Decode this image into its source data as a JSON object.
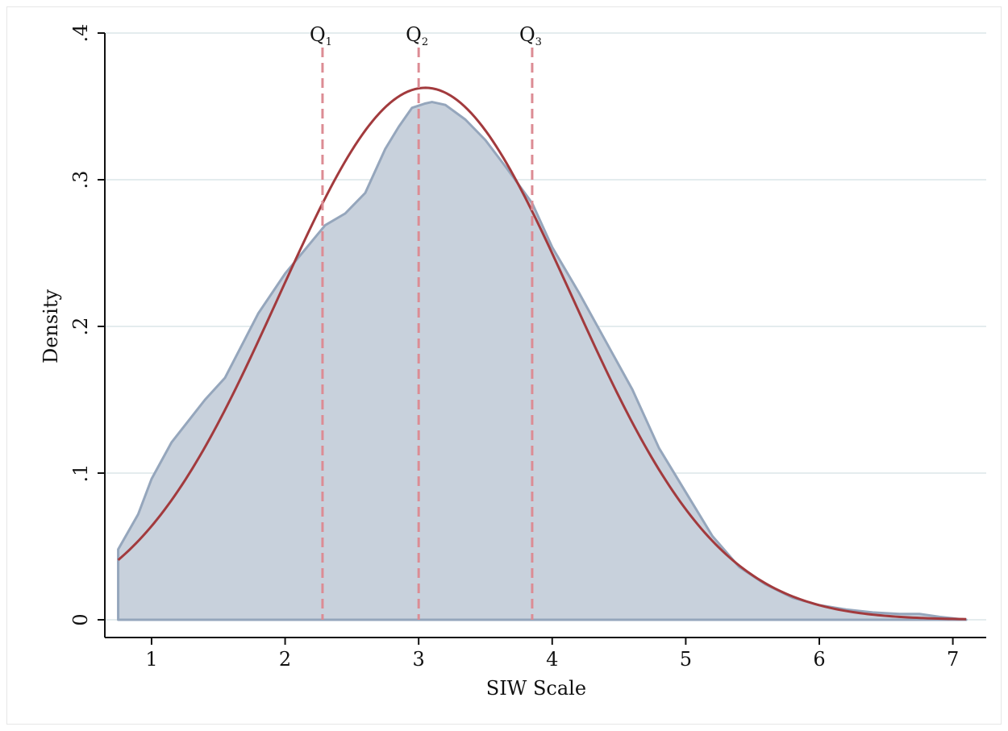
{
  "chart_data": {
    "type": "area",
    "title": "",
    "xlabel": "SIW Scale",
    "ylabel": "Density",
    "xlim": [
      0.65,
      7.25
    ],
    "ylim": [
      0,
      0.4
    ],
    "x_ticks": [
      1,
      2,
      3,
      4,
      5,
      6,
      7
    ],
    "x_tick_labels": [
      "1",
      "2",
      "3",
      "4",
      "5",
      "6",
      "7"
    ],
    "y_ticks": [
      0,
      0.1,
      0.2,
      0.3,
      0.4
    ],
    "y_tick_labels": [
      "0",
      ".1",
      ".2",
      ".3",
      ".4"
    ],
    "grid": "horizontal",
    "colors": {
      "area_fill": "#c8d1dc",
      "area_edge": "#95a6bc",
      "curve": "#a23a3d",
      "quartile_lines": "#dc8c94",
      "grid": "#e4ecee",
      "axis": "#111111"
    },
    "series": [
      {
        "type": "area",
        "x": [
          0.75,
          0.9,
          1.0,
          1.15,
          1.4,
          1.55,
          1.8,
          2.0,
          2.2,
          2.3,
          2.45,
          2.6,
          2.75,
          2.85,
          2.95,
          3.05,
          3.1,
          3.2,
          3.35,
          3.5,
          3.65,
          3.85,
          4.0,
          4.2,
          4.4,
          4.6,
          4.8,
          5.0,
          5.2,
          5.4,
          5.6,
          5.8,
          6.0,
          6.2,
          6.4,
          6.6,
          6.75,
          6.9,
          7.1
        ],
        "y": [
          0.048,
          0.072,
          0.096,
          0.121,
          0.15,
          0.165,
          0.209,
          0.236,
          0.258,
          0.269,
          0.277,
          0.291,
          0.321,
          0.336,
          0.349,
          0.352,
          0.353,
          0.351,
          0.341,
          0.327,
          0.309,
          0.284,
          0.254,
          0.223,
          0.19,
          0.157,
          0.117,
          0.087,
          0.057,
          0.036,
          0.024,
          0.015,
          0.01,
          0.007,
          0.005,
          0.004,
          0.004,
          0.002,
          0.0
        ]
      },
      {
        "type": "line",
        "distribution": "normal",
        "mean": 3.05,
        "sd": 1.1,
        "x_range": [
          0.75,
          7.1
        ]
      }
    ],
    "annotations": [
      {
        "label": "Q",
        "subscript": "1",
        "x": 2.28
      },
      {
        "label": "Q",
        "subscript": "2",
        "x": 3.0
      },
      {
        "label": "Q",
        "subscript": "3",
        "x": 3.85
      }
    ]
  }
}
